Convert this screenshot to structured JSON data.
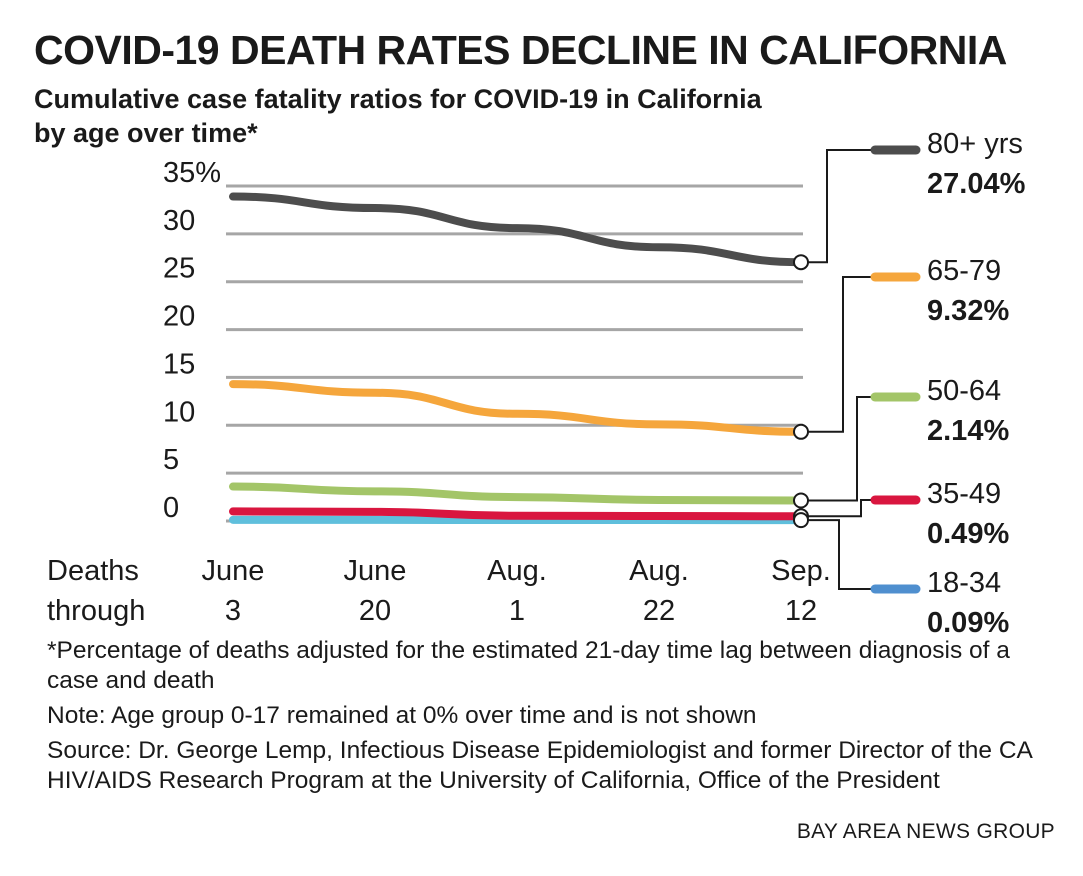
{
  "title": "COVID-19 DEATH RATES DECLINE IN CALIFORNIA",
  "subtitle": "Cumulative case fatality ratios for COVID-19 in California by age over time*",
  "x_axis_label": [
    "Deaths",
    "through"
  ],
  "notes": {
    "footnote": "*Percentage of deaths adjusted for the estimated 21-day time lag between diagnosis of a case and death",
    "note": "Note: Age group 0-17 remained at 0% over time and is not shown",
    "source": "Source: Dr. George Lemp, Infectious Disease Epidemiologist and former Director of the CA HIV/AIDS Research Program at the University of California, Office of the President"
  },
  "credit": "BAY AREA NEWS GROUP",
  "chart_data": {
    "type": "line",
    "title": "COVID-19 DEATH RATES DECLINE IN CALIFORNIA",
    "subtitle": "Cumulative case fatality ratios for COVID-19 in California by age over time*",
    "x": [
      [
        "June",
        "3"
      ],
      [
        "June",
        "20"
      ],
      [
        "Aug.",
        "1"
      ],
      [
        "Aug.",
        "22"
      ],
      [
        "Sep.",
        "12"
      ]
    ],
    "ylim": [
      0,
      35
    ],
    "yticks": [
      {
        "value": 35,
        "label": "35%"
      },
      {
        "value": 30,
        "label": "30"
      },
      {
        "value": 25,
        "label": "25"
      },
      {
        "value": 20,
        "label": "20"
      },
      {
        "value": 15,
        "label": "15"
      },
      {
        "value": 10,
        "label": "10"
      },
      {
        "value": 5,
        "label": "5"
      },
      {
        "value": 0,
        "label": "0"
      }
    ],
    "grid": true,
    "legend": "right",
    "series": [
      {
        "name": "80+ yrs",
        "final_label": "27.04%",
        "color": "#4d4d4d",
        "values": [
          33.9,
          32.7,
          30.6,
          28.6,
          27.04
        ]
      },
      {
        "name": "65-79",
        "final_label": "9.32%",
        "color": "#f5a63c",
        "values": [
          14.3,
          13.4,
          11.2,
          10.1,
          9.32
        ]
      },
      {
        "name": "50-64",
        "final_label": "2.14%",
        "color": "#a3c568",
        "values": [
          3.6,
          3.1,
          2.5,
          2.2,
          2.14
        ]
      },
      {
        "name": "35-49",
        "final_label": "0.49%",
        "color": "#d9163f",
        "values": [
          1.0,
          0.95,
          0.55,
          0.52,
          0.49
        ]
      },
      {
        "name": "18-34",
        "final_label": "0.09%",
        "color": "#5fbfdc",
        "legend_color": "#4f8fcf",
        "values": [
          0.12,
          0.12,
          0.1,
          0.1,
          0.09
        ]
      }
    ]
  }
}
